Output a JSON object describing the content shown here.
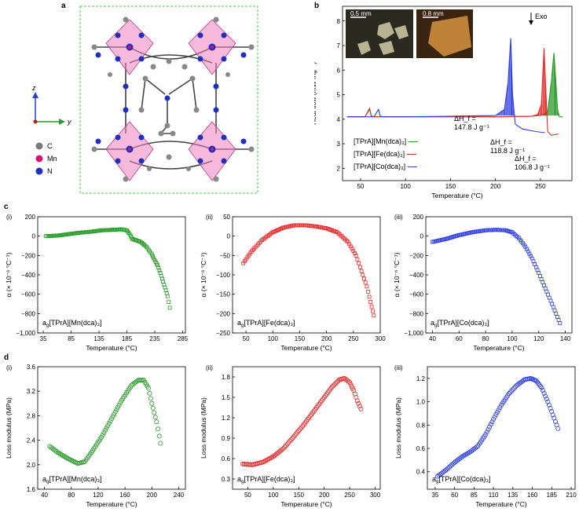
{
  "panel_a": {
    "letter": "a",
    "axes": {
      "z": "z",
      "y": "y"
    },
    "legend": [
      {
        "label": "C",
        "color": "#7a7a7a"
      },
      {
        "label": "Mn",
        "color": "#d2147a"
      },
      {
        "label": "N",
        "color": "#1f2fbf"
      }
    ]
  },
  "panel_b": {
    "letter": "b",
    "exo_label": "Exo",
    "scale_bars": [
      "0.5 mm",
      "0.8 mm"
    ],
    "xlabel": "Temperature (°C)",
    "ylabel": "Heat flow (mW mg⁻¹)",
    "legend": [
      {
        "label": "[TPrA][Mn(dca)₃]",
        "color": "#2a9a2a"
      },
      {
        "label": "[TPrA][Fe(dca)₃]",
        "color": "#e62b2b"
      },
      {
        "label": "[TPrA][Co(dca)₃]",
        "color": "#2f3fe0"
      }
    ],
    "enthalpy": [
      {
        "label": "ΔH_f =",
        "value": "147.8 J g⁻¹"
      },
      {
        "label": "ΔH_f =",
        "value": "118.8 J g⁻¹"
      },
      {
        "label": "ΔH_f =",
        "value": "106.8 J g⁻¹"
      }
    ]
  },
  "panel_c": {
    "letter": "c",
    "sublabels": [
      "(i)",
      "(ii)",
      "(iii)"
    ]
  },
  "panel_d": {
    "letter": "d",
    "sublabels": [
      "(i)",
      "(ii)",
      "(iii)"
    ]
  },
  "chart_data": [
    {
      "id": "b",
      "type": "line",
      "title": "",
      "xlabel": "Temperature (°C)",
      "ylabel": "Heat flow (mW mg⁻¹)",
      "xlim": [
        30,
        285
      ],
      "ylim": [
        1.5,
        8.6
      ],
      "xticks": [
        50,
        100,
        150,
        200,
        250
      ],
      "yticks": [
        2,
        3,
        4,
        5,
        6,
        7,
        8
      ],
      "series": [
        {
          "name": "[TPrA][Mn(dca)₃]",
          "color": "#2a9a2a",
          "x": [
            35,
            55,
            60,
            62,
            64,
            100,
            150,
            200,
            240,
            250,
            258,
            262,
            265,
            267,
            269,
            271,
            275
          ],
          "y": [
            4.1,
            4.1,
            4.45,
            4.15,
            4.1,
            4.1,
            4.1,
            4.1,
            4.12,
            4.15,
            4.3,
            5.5,
            6.7,
            5.6,
            4.4,
            4.1,
            4.1
          ]
        },
        {
          "name": "[TPrA][Fe(dca)₃]",
          "color": "#e62b2b",
          "x": [
            35,
            55,
            60,
            62,
            64,
            100,
            150,
            200,
            240,
            247,
            251,
            254,
            256,
            258,
            262,
            270
          ],
          "y": [
            4.1,
            4.1,
            4.4,
            4.12,
            4.1,
            4.1,
            4.1,
            4.1,
            4.12,
            4.2,
            4.6,
            6.9,
            5.2,
            3.5,
            3.35,
            3.4
          ]
        },
        {
          "name": "[TPrA][Co(dca)₃]",
          "color": "#2f3fe0",
          "x": [
            35,
            65,
            70,
            72,
            75,
            100,
            150,
            200,
            210,
            214,
            217,
            219,
            222,
            230,
            245,
            255
          ],
          "y": [
            4.1,
            4.1,
            4.4,
            4.12,
            4.1,
            4.1,
            4.12,
            4.15,
            4.4,
            5.5,
            7.3,
            5.0,
            3.8,
            3.6,
            3.5,
            3.45
          ]
        }
      ]
    },
    {
      "id": "c-i",
      "type": "scatter",
      "title": "",
      "xlabel": "Temperature (°C)",
      "ylabel": "α (× 10⁻⁶ °C⁻¹)",
      "annotation": "a_g[TPrA][Mn(dca)₃]",
      "xlim": [
        25,
        290
      ],
      "ylim": [
        -1000,
        200
      ],
      "xticks": [
        35,
        85,
        135,
        185,
        235,
        285
      ],
      "yticks": [
        -1000,
        -800,
        -600,
        -400,
        -200,
        0,
        200
      ],
      "ytick_labels": [
        "−1,000",
        "−800",
        "−600",
        "−400",
        "−200",
        "0",
        "200"
      ],
      "color": "#2a9a2a",
      "x": [
        40,
        60,
        80,
        100,
        120,
        140,
        160,
        175,
        185,
        190,
        195,
        200,
        210,
        220,
        230,
        235,
        240,
        245,
        250,
        255,
        258,
        262
      ],
      "y": [
        0,
        5,
        20,
        35,
        45,
        60,
        65,
        70,
        60,
        20,
        -30,
        -40,
        -60,
        -110,
        -190,
        -250,
        -300,
        -380,
        -470,
        -560,
        -620,
        -740
      ]
    },
    {
      "id": "c-ii",
      "type": "scatter",
      "title": "",
      "xlabel": "Temperature (°C)",
      "ylabel": "α (× 10⁻⁶ °C⁻¹)",
      "annotation": "a_g[TPrA][Fe(dca)₃]",
      "xlim": [
        25,
        300
      ],
      "ylim": [
        -250,
        50
      ],
      "xticks": [
        50,
        100,
        150,
        200,
        250,
        300
      ],
      "yticks": [
        -250,
        -200,
        -150,
        -100,
        -50,
        0,
        50
      ],
      "ytick_labels": [
        "−250",
        "−200",
        "−150",
        "−100",
        "−50",
        "0",
        "50"
      ],
      "color": "#e62b2b",
      "x": [
        45,
        60,
        80,
        100,
        120,
        140,
        160,
        180,
        200,
        220,
        240,
        255,
        265,
        275,
        282,
        288
      ],
      "y": [
        -70,
        -40,
        -10,
        10,
        22,
        28,
        28,
        25,
        20,
        10,
        -15,
        -50,
        -90,
        -130,
        -170,
        -205
      ]
    },
    {
      "id": "c-iii",
      "type": "scatter",
      "title": "",
      "xlabel": "Temperature (°C)",
      "ylabel": "α (× 10⁻⁶ °C⁻¹)",
      "annotation": "a_g[TPrA][Co(dca)₃]",
      "xlim": [
        35,
        145
      ],
      "ylim": [
        -1000,
        200
      ],
      "xticks": [
        40,
        60,
        80,
        100,
        120,
        140
      ],
      "yticks": [
        -1000,
        -800,
        -600,
        -400,
        -200,
        0,
        200
      ],
      "ytick_labels": [
        "−1,000",
        "−800",
        "−600",
        "−400",
        "−200",
        "0",
        "200"
      ],
      "color": "#2f3fe0",
      "x": [
        40,
        50,
        60,
        70,
        80,
        88,
        95,
        100,
        105,
        110,
        115,
        120,
        125,
        130,
        133,
        136
      ],
      "y": [
        -60,
        -30,
        10,
        40,
        60,
        65,
        60,
        40,
        -20,
        -110,
        -230,
        -380,
        -540,
        -700,
        -800,
        -900
      ]
    },
    {
      "id": "d-i",
      "type": "scatter",
      "title": "",
      "xlabel": "Temperature (°C)",
      "ylabel": "Loss modulus (MPa)",
      "annotation": "a_g[TPrA][Mn(dca)₃]",
      "xlim": [
        30,
        250
      ],
      "ylim": [
        1.6,
        3.6
      ],
      "xticks": [
        40,
        80,
        120,
        160,
        200,
        240
      ],
      "yticks": [
        1.6,
        2.0,
        2.4,
        2.8,
        3.2,
        3.6
      ],
      "ytick_labels": [
        "1.6",
        "2.0",
        "2.4",
        "2.8",
        "3.2",
        "3.6"
      ],
      "color": "#2a9a2a",
      "x": [
        48,
        60,
        75,
        90,
        100,
        110,
        125,
        140,
        155,
        170,
        180,
        188,
        195,
        200,
        207,
        213
      ],
      "y": [
        2.3,
        2.2,
        2.1,
        2.02,
        2.05,
        2.2,
        2.45,
        2.75,
        3.05,
        3.3,
        3.38,
        3.38,
        3.25,
        3.0,
        2.7,
        2.35
      ]
    },
    {
      "id": "d-ii",
      "type": "scatter",
      "title": "",
      "xlabel": "Temperature (°C)",
      "ylabel": "Loss modulus (MPa)",
      "annotation": "a_g[TPrA][Fe(dca)₃]",
      "xlim": [
        20,
        310
      ],
      "ylim": [
        0.15,
        1.95
      ],
      "xticks": [
        50,
        100,
        150,
        200,
        250,
        300
      ],
      "yticks": [
        0.3,
        0.6,
        0.9,
        1.2,
        1.5,
        1.8
      ],
      "ytick_labels": [
        "0.3",
        "0.6",
        "0.9",
        "1.2",
        "1.5",
        "1.8"
      ],
      "color": "#e62b2b",
      "x": [
        40,
        60,
        80,
        100,
        120,
        140,
        160,
        180,
        200,
        215,
        230,
        240,
        250,
        258,
        265,
        272
      ],
      "y": [
        0.52,
        0.51,
        0.55,
        0.63,
        0.75,
        0.92,
        1.1,
        1.3,
        1.5,
        1.65,
        1.76,
        1.78,
        1.72,
        1.6,
        1.45,
        1.33
      ]
    },
    {
      "id": "d-iii",
      "type": "scatter",
      "title": "",
      "xlabel": "Temperature (°C)",
      "ylabel": "Loss modulus (MPa)",
      "annotation": "a_g[TPrA][Co(dca)₃]",
      "xlim": [
        25,
        215
      ],
      "ylim": [
        0.25,
        1.3
      ],
      "xticks": [
        35,
        60,
        85,
        110,
        135,
        160,
        185,
        210
      ],
      "yticks": [
        0.4,
        0.6,
        0.8,
        1.0,
        1.2
      ],
      "ytick_labels": [
        "0.4",
        "0.6",
        "0.8",
        "1.0",
        "1.2"
      ],
      "color": "#2f3fe0",
      "x": [
        38,
        50,
        60,
        70,
        80,
        90,
        100,
        110,
        120,
        130,
        140,
        150,
        158,
        165,
        172,
        180,
        188,
        193
      ],
      "y": [
        0.36,
        0.42,
        0.48,
        0.53,
        0.57,
        0.62,
        0.72,
        0.85,
        0.97,
        1.07,
        1.14,
        1.19,
        1.2,
        1.18,
        1.12,
        1.0,
        0.86,
        0.77
      ]
    }
  ]
}
